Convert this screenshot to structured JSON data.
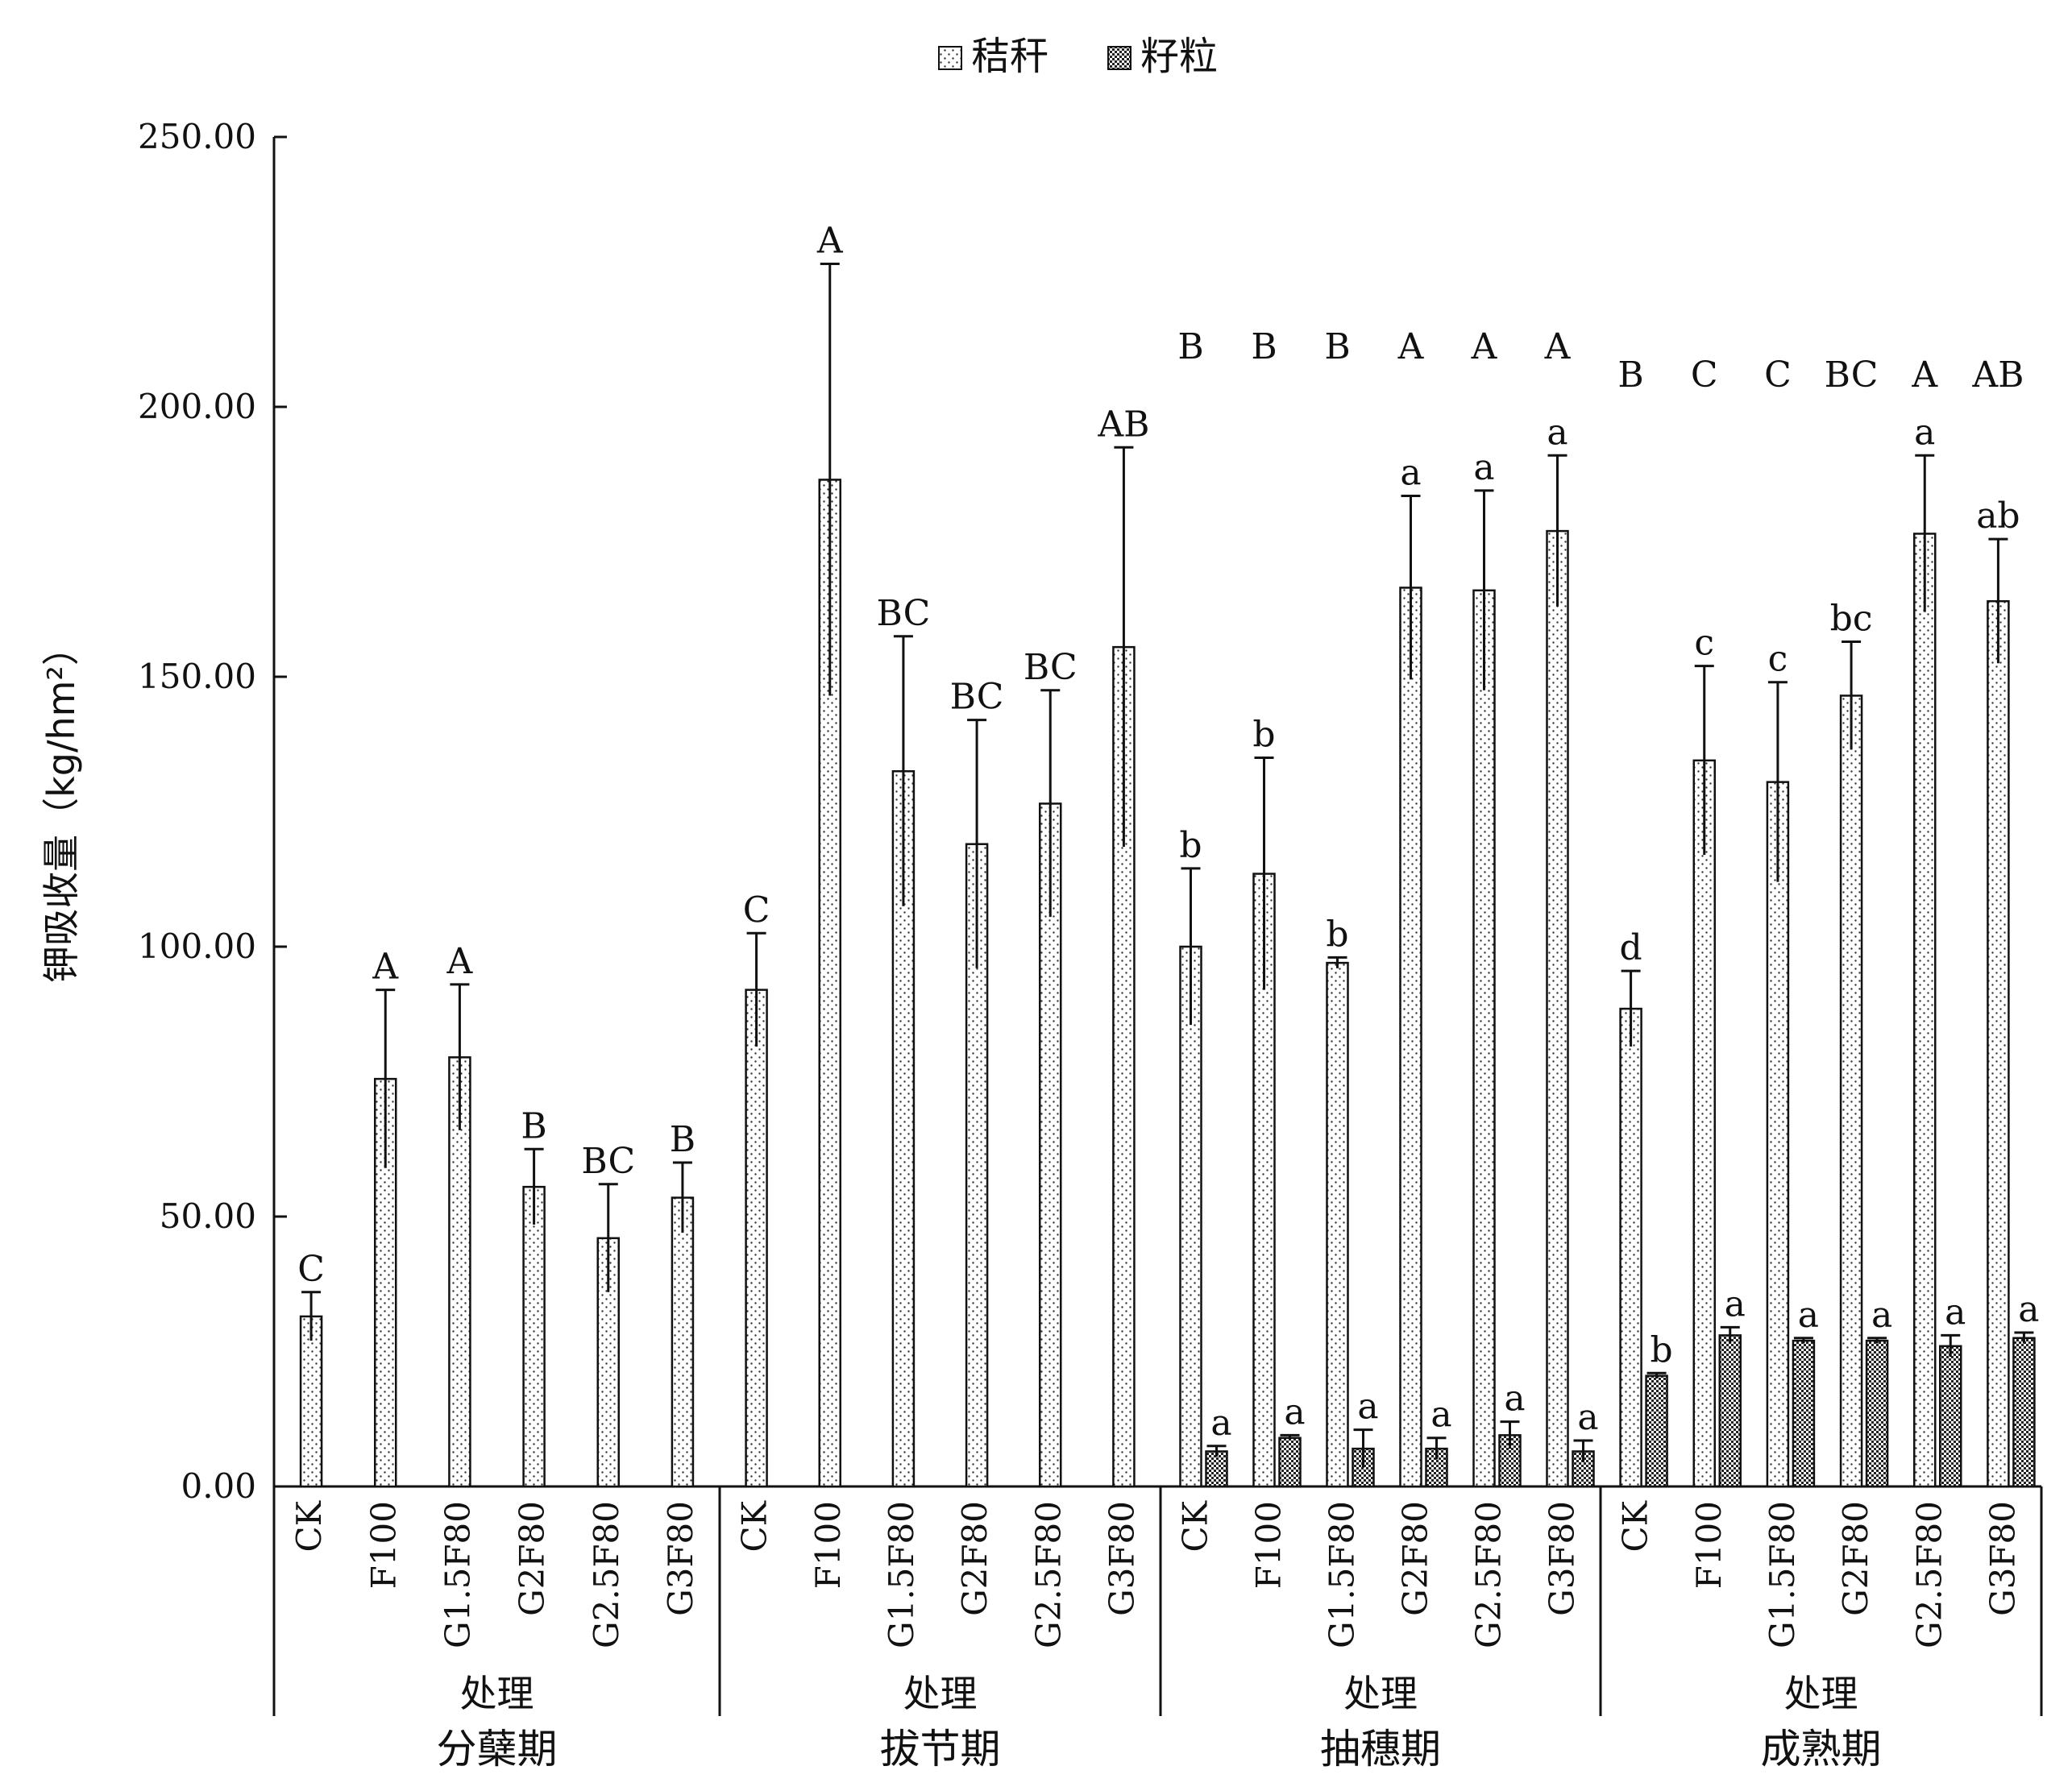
{
  "chart_data": {
    "type": "bar",
    "ylabel": "钾吸收量（kg/hm²）",
    "ylim": [
      0,
      250
    ],
    "yticks": [
      "0.00",
      "50.00",
      "100.00",
      "150.00",
      "200.00",
      "250.00"
    ],
    "legend": {
      "position": "top-center"
    },
    "series": [
      {
        "name": "秸秆",
        "pattern": "sparse-dots"
      },
      {
        "name": "籽粒",
        "pattern": "dense-dots"
      }
    ],
    "groups": [
      {
        "name": "分蘖期",
        "xlabel": "处理",
        "categories": [
          "CK",
          "F100",
          "G1.5F80",
          "G2F80",
          "G2.5F80",
          "G3F80"
        ],
        "straw": {
          "values": [
            31.5,
            75.5,
            79.5,
            55.5,
            46.0,
            53.5
          ],
          "errors": [
            4.5,
            16.5,
            13.5,
            7.0,
            10.0,
            6.5
          ],
          "labels": [
            "C",
            "A",
            "A",
            "B",
            "BC",
            "B"
          ]
        }
      },
      {
        "name": "拔节期",
        "xlabel": "处理",
        "categories": [
          "CK",
          "F100",
          "G1.5F80",
          "G2F80",
          "G2.5F80",
          "G3F80"
        ],
        "straw": {
          "values": [
            92.0,
            186.5,
            132.5,
            119.0,
            126.5,
            155.5
          ],
          "errors": [
            10.5,
            40.0,
            25.0,
            23.0,
            21.0,
            37.0
          ],
          "labels": [
            "C",
            "A",
            "BC",
            "BC",
            "BC",
            "AB"
          ]
        }
      },
      {
        "name": "抽穗期",
        "xlabel": "处理",
        "top_labels": [
          "B",
          "B",
          "B",
          "A",
          "A",
          "A"
        ],
        "categories": [
          "CK",
          "F100",
          "G1.5F80",
          "G2F80",
          "G2.5F80",
          "G3F80"
        ],
        "straw": {
          "values": [
            100.0,
            113.5,
            97.0,
            166.5,
            166.0,
            177.0
          ],
          "errors": [
            14.5,
            21.5,
            1.0,
            17.0,
            18.5,
            14.0
          ],
          "labels": [
            "b",
            "b",
            "b",
            "a",
            "a",
            "a"
          ]
        },
        "grain": {
          "values": [
            6.5,
            9.0,
            7.0,
            7.0,
            9.5,
            6.5
          ],
          "errors": [
            1.0,
            0.5,
            3.5,
            2.0,
            2.5,
            2.0
          ],
          "labels": [
            "a",
            "a",
            "a",
            "a",
            "a",
            "a"
          ]
        }
      },
      {
        "name": "成熟期",
        "xlabel": "处理",
        "top_labels": [
          "B",
          "C",
          "C",
          "BC",
          "A",
          "AB"
        ],
        "categories": [
          "CK",
          "F100",
          "G1.5F80",
          "G2F80",
          "G2.5F80",
          "G3F80"
        ],
        "straw": {
          "values": [
            88.5,
            134.5,
            130.5,
            146.5,
            176.5,
            164.0
          ],
          "errors": [
            7.0,
            17.5,
            18.5,
            10.0,
            14.5,
            11.5
          ],
          "labels": [
            "d",
            "c",
            "c",
            "bc",
            "a",
            "ab"
          ]
        },
        "grain": {
          "values": [
            20.5,
            28.0,
            27.0,
            27.0,
            26.0,
            27.5
          ],
          "errors": [
            0.5,
            1.5,
            0.5,
            0.5,
            2.0,
            1.0
          ],
          "labels": [
            "b",
            "a",
            "a",
            "a",
            "a",
            "a"
          ]
        }
      }
    ]
  }
}
